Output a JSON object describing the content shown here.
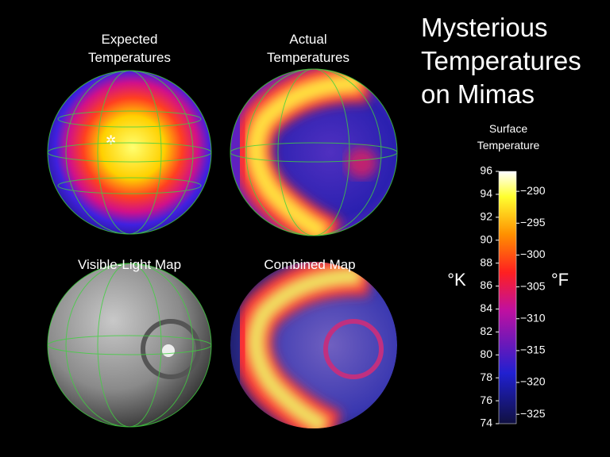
{
  "title": "Mysterious Temperatures on Mimas",
  "panels": [
    {
      "label": "Expected Temperatures"
    },
    {
      "label": "Actual Temperatures"
    },
    {
      "label": "Visible-Light Map"
    },
    {
      "label": "Combined Map"
    }
  ],
  "colorbar": {
    "label": "Surface Temperature",
    "left_unit": "°K",
    "right_unit": "°F",
    "klim": [
      74,
      96
    ],
    "kticks": [
      74,
      76,
      78,
      80,
      82,
      84,
      86,
      88,
      90,
      92,
      94,
      96
    ],
    "flim": [
      -326.47,
      -286.87
    ],
    "fticks": [
      {
        "value": -290,
        "label": "−290"
      },
      {
        "value": -295,
        "label": "−295"
      },
      {
        "value": -300,
        "label": "−300"
      },
      {
        "value": -305,
        "label": "−305"
      },
      {
        "value": -310,
        "label": "−310"
      },
      {
        "value": -315,
        "label": "−315"
      },
      {
        "value": -320,
        "label": "−320"
      },
      {
        "value": -325,
        "label": "−325"
      }
    ]
  }
}
